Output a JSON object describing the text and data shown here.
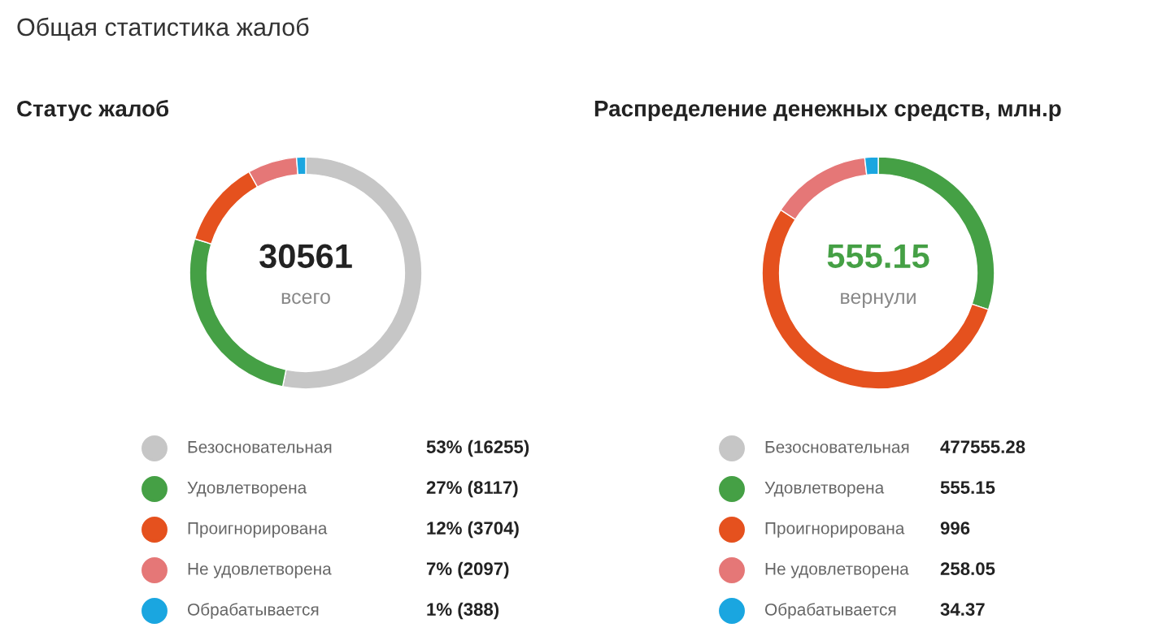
{
  "chart_data": [
    {
      "type": "donut",
      "title": "Статус жалоб",
      "annotations": [
        "Общая статистика жалоб",
        "30561",
        "всего"
      ],
      "categories": [
        "Безосновательная",
        "Удовлетворена",
        "Проигнорирована",
        "Не удовлетворена",
        "Обрабатывается"
      ],
      "values": [
        16255,
        8117,
        3704,
        2097,
        388
      ],
      "value_labels": [
        "53% (16255)",
        "27% (8117)",
        "12% (3704)",
        "7% (2097)",
        "1% (388)"
      ],
      "colors": [
        "#c6c6c6",
        "#45a045",
        "#e5511e",
        "#e57777",
        "#1aa6e0"
      ],
      "legend": "bottom"
    },
    {
      "type": "donut",
      "title": "Распределение денежных средств, млн.р",
      "annotations": [
        {
          "text": "555.15",
          "x": "Удовлетворена"
        },
        "вернули"
      ],
      "categories": [
        "Безосновательная",
        "Удовлетворена",
        "Проигнорирована",
        "Не удовлетворена",
        "Обрабатывается"
      ],
      "values": [
        null,
        555.15,
        996,
        258.05,
        34.37
      ],
      "value_labels": [
        "477555.28",
        "555.15",
        "996",
        "258.05",
        "34.37"
      ],
      "colors": [
        "#c6c6c6",
        "#45a045",
        "#e5511e",
        "#e57777",
        "#1aa6e0"
      ],
      "legend": "bottom"
    }
  ]
}
